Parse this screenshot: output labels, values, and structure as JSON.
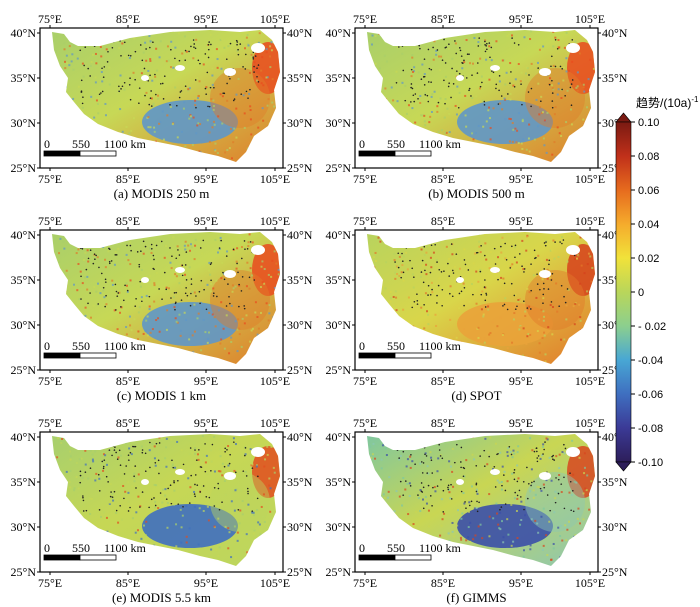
{
  "legend": {
    "title": "趋势/(10a)",
    "title_sup": "-1",
    "ticks": [
      "0.10",
      "0.08",
      "0.06",
      "0.04",
      "0.02",
      "0",
      "- 0.02",
      "-0.04",
      "-0.06",
      "-0.08",
      "-0.10"
    ],
    "colors": [
      "#2d1e5a",
      "#3b3a96",
      "#3f6fc0",
      "#48a7d4",
      "#8ccf8e",
      "#b9d65a",
      "#f1e23a",
      "#f5ab2c",
      "#e66b1e",
      "#c0301a",
      "#7a1a12"
    ]
  },
  "axes": {
    "lon_ticks": [
      "75°E",
      "85°E",
      "95°E",
      "105°E"
    ],
    "lat_ticks": [
      "40°N",
      "35°N",
      "30°N",
      "25°N"
    ]
  },
  "scalebar": {
    "labels": [
      "0",
      "550",
      "1100 km"
    ]
  },
  "panels": [
    {
      "id": "a",
      "caption": "(a) MODIS 250 m",
      "palette": {
        "west": "#a9cf6a",
        "north": "#c7d856",
        "south": "#5f97c8",
        "east": "#e07c2a",
        "rim": "#e94b1e"
      }
    },
    {
      "id": "b",
      "caption": "(b) MODIS 500 m",
      "palette": {
        "west": "#a9cf6a",
        "north": "#c7d856",
        "south": "#5f97c8",
        "east": "#e07c2a",
        "rim": "#e94b1e"
      }
    },
    {
      "id": "c",
      "caption": "(c) MODIS 1 km",
      "palette": {
        "west": "#a9cf6a",
        "north": "#c7d856",
        "south": "#5f97c8",
        "east": "#e07c2a",
        "rim": "#e94b1e"
      }
    },
    {
      "id": "d",
      "caption": "(d) SPOT",
      "palette": {
        "west": "#b8d35e",
        "north": "#d9d64a",
        "south": "#e9a33a",
        "east": "#e3782a",
        "rim": "#d6421c"
      }
    },
    {
      "id": "e",
      "caption": "(e) MODIS 5.5 km",
      "palette": {
        "west": "#a7cf6e",
        "north": "#c6d755",
        "south": "#3f6fc0",
        "east": "#bcd55e",
        "rim": "#e24d1f"
      }
    },
    {
      "id": "f",
      "caption": "(f) GIMMS",
      "palette": {
        "west": "#7fc7a0",
        "north": "#c9d653",
        "south": "#3b4fa8",
        "east": "#8cc7b4",
        "rim": "#d8461e"
      }
    }
  ]
}
